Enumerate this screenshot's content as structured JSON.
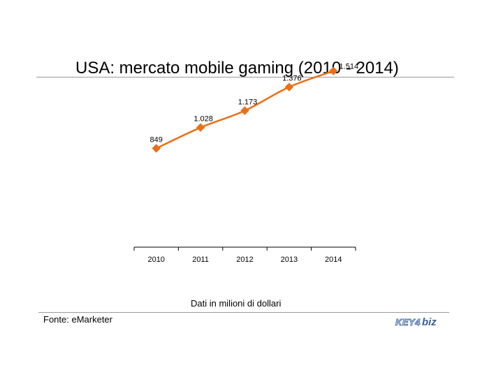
{
  "chart_data": {
    "type": "line",
    "title": "USA: mercato mobile gaming (2010 - 2014)",
    "categories": [
      "2010",
      "2011",
      "2012",
      "2013",
      "2014"
    ],
    "values": [
      849,
      1028,
      1173,
      1376,
      1514
    ],
    "data_labels": [
      "849",
      "1.028",
      "1.173",
      "1.376",
      "1.514"
    ],
    "series": [
      {
        "values": [
          849,
          1028,
          1173,
          1376,
          1514
        ],
        "color": "#e8701a",
        "marker": "diamond"
      }
    ],
    "ylim": [
      0,
      1800
    ],
    "grid": false,
    "legend": "none"
  },
  "footer": {
    "unit_note": "Dati in milioni di dollari",
    "source": "Fonte: eMarketer",
    "logo_text": "KEY4biz"
  },
  "colors": {
    "series": "#e8701a",
    "rule": "#9a9a9a",
    "logo": "#3d5f91"
  }
}
